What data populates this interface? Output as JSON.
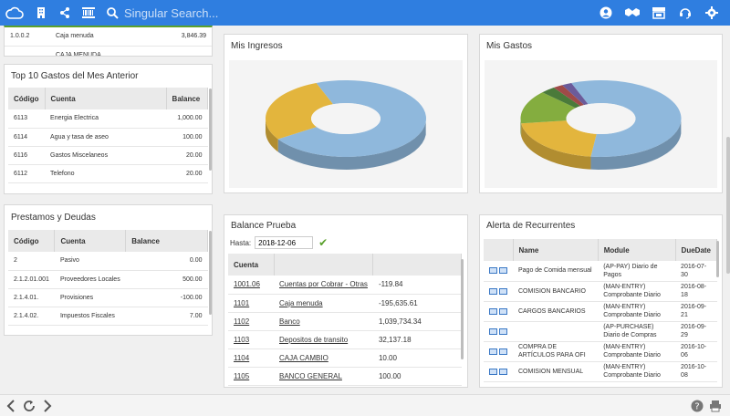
{
  "topbar": {
    "search_placeholder": "Singular Search..."
  },
  "top_partial": {
    "rows": [
      {
        "code": "1.0.0.2",
        "name": "Caja menuda",
        "value": "3,846.39"
      },
      {
        "code": "",
        "name": "CAJA MENUDA",
        "value": ""
      }
    ]
  },
  "top_gastos": {
    "title": "Top 10 Gastos del Mes Anterior",
    "headers": [
      "Código",
      "Cuenta",
      "Balance"
    ],
    "rows": [
      {
        "code": "6113",
        "name": "Energia Electrica",
        "value": "1,000.00"
      },
      {
        "code": "6114",
        "name": "Agua y tasa de aseo",
        "value": "100.00"
      },
      {
        "code": "6116",
        "name": "Gastos Miscelaneos",
        "value": "20.00"
      },
      {
        "code": "6112",
        "name": "Telefono",
        "value": "20.00"
      }
    ]
  },
  "prestamos": {
    "title": "Prestamos y Deudas",
    "headers": [
      "Código",
      "Cuenta",
      "Balance"
    ],
    "rows": [
      {
        "code": "2",
        "name": "Pasivo",
        "value": "0.00"
      },
      {
        "code": "2.1.2.01.001",
        "name": "Proveedores Locales",
        "value": "500.00"
      },
      {
        "code": "2.1.4.01.",
        "name": "Provisiones",
        "value": "-100.00"
      },
      {
        "code": "2.1.4.02.",
        "name": "Impuestos Fiscales",
        "value": "7.00"
      }
    ]
  },
  "ingresos": {
    "title": "Mis Ingresos",
    "chart_data": {
      "type": "pie",
      "slices": [
        {
          "value": 72,
          "color": "#8fb8dc"
        },
        {
          "value": 28,
          "color": "#e3b53d"
        }
      ]
    }
  },
  "gastos": {
    "title": "Mis Gastos",
    "chart_data": {
      "type": "pie",
      "slices": [
        {
          "value": 58,
          "color": "#8fb8dc"
        },
        {
          "value": 21,
          "color": "#e3b53d"
        },
        {
          "value": 14,
          "color": "#84ad3f"
        },
        {
          "value": 3,
          "color": "#4a7a3a"
        },
        {
          "value": 2,
          "color": "#a04a48"
        },
        {
          "value": 2,
          "color": "#6b5b9a"
        }
      ]
    }
  },
  "balance": {
    "title": "Balance Prueba",
    "hasta_label": "Hasta:",
    "hasta_value": "2018-12-06",
    "headers": [
      "Cuenta",
      "",
      ""
    ],
    "rows": [
      {
        "code": "1001.06",
        "name": "Cuentas por Cobrar - Otras",
        "value": "-119.84"
      },
      {
        "code": "1101",
        "name": "Caja menuda",
        "value": "-195,635.61"
      },
      {
        "code": "1102",
        "name": "Banco",
        "value": "1,039,734.34"
      },
      {
        "code": "1103",
        "name": "Depositos de transito",
        "value": "32,137.18"
      },
      {
        "code": "1104",
        "name": "CAJA CAMBIO",
        "value": "10.00"
      },
      {
        "code": "1105",
        "name": "BANCO GENERAL",
        "value": "100.00"
      }
    ]
  },
  "recurrentes": {
    "title": "Alerta de Recurrentes",
    "headers": [
      "",
      "Name",
      "Module",
      "DueDate"
    ],
    "rows": [
      {
        "name": "Pago de Comida mensual",
        "module": "(AP-PAY) Diario de Pagos",
        "date": "2016-07-30"
      },
      {
        "name": "COMISION BANCARIO",
        "module": "(MAN-ENTRY) Comprobante Diario",
        "date": "2016-08-18"
      },
      {
        "name": "CARGOS BANCARIOS",
        "module": "(MAN-ENTRY) Comprobante Diario",
        "date": "2016-09-21"
      },
      {
        "name": "",
        "module": "(AP-PURCHASE) Diario de Compras",
        "date": "2016-09-29"
      },
      {
        "name": "COMPRA DE ARTÍCULOS PARA OFI",
        "module": "(MAN-ENTRY) Comprobante Diario",
        "date": "2016-10-06"
      },
      {
        "name": "COMISION MENSUAL",
        "module": "(MAN-ENTRY) Comprobante Diario",
        "date": "2016-10-08"
      }
    ]
  }
}
